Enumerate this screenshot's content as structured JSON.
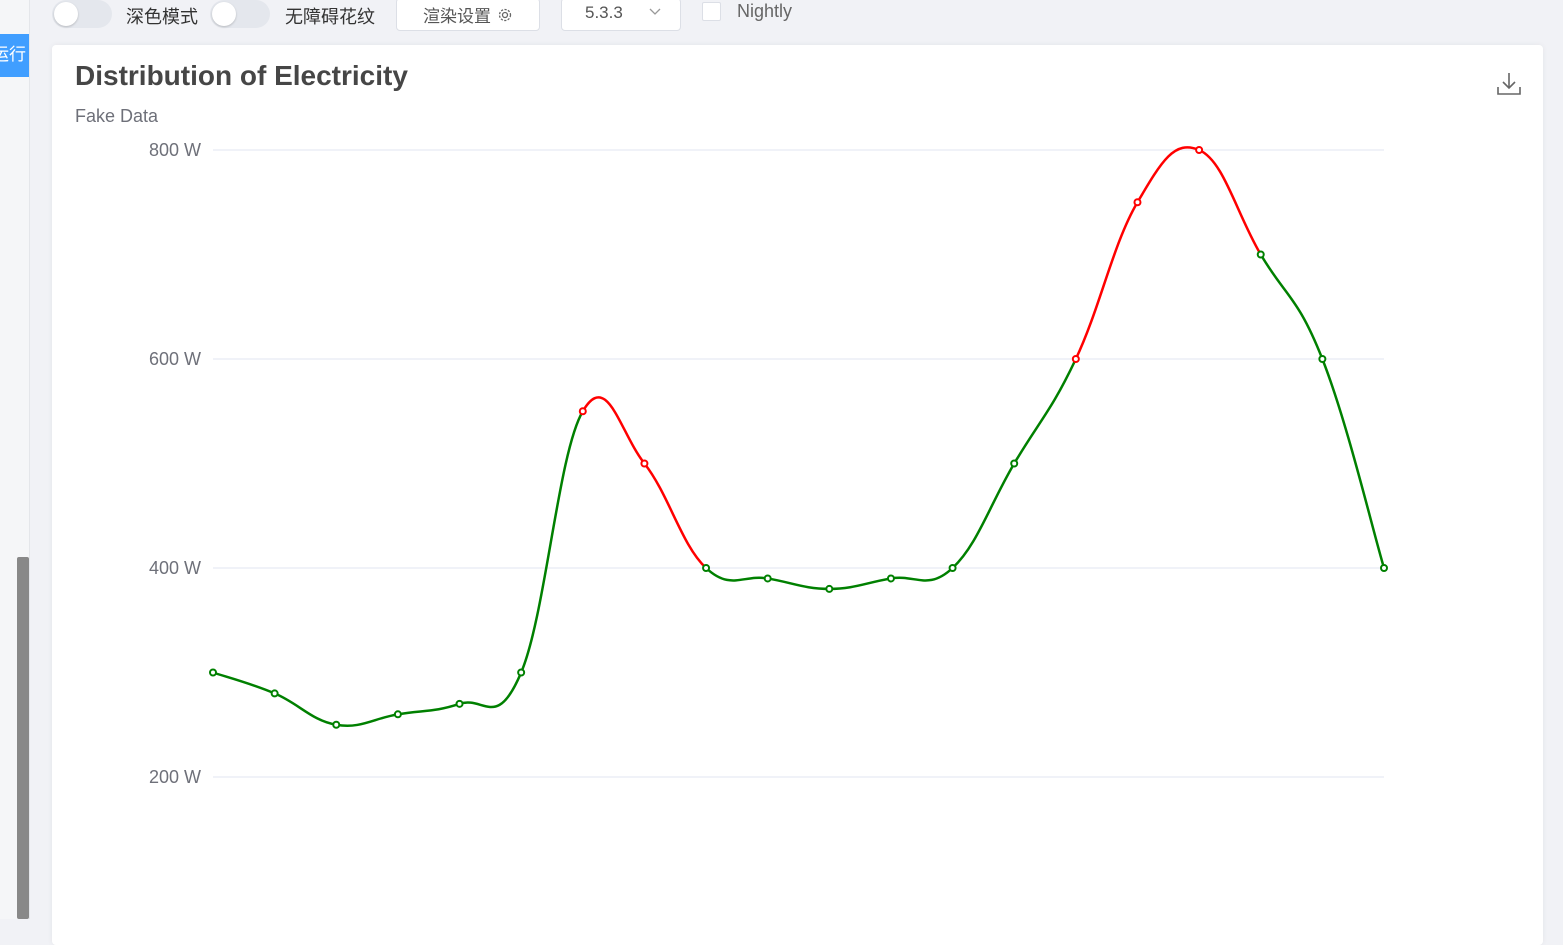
{
  "sidebar": {
    "run_label": "运行"
  },
  "toolbar": {
    "dark_mode_label": "深色模式",
    "accessibility_label": "无障碍花纹",
    "render_settings_label": "渲染设置",
    "render_settings_icon": "gear-icon",
    "version_value": "5.3.3",
    "nightly_label": "Nightly"
  },
  "card": {
    "download_icon": "download-icon"
  },
  "chart_data": {
    "type": "line",
    "title": "Distribution of Electricity",
    "subtitle": "Fake Data",
    "smooth": true,
    "y_ticks": [
      "200 W",
      "400 W",
      "600 W",
      "800 W"
    ],
    "ylim": [
      200,
      800
    ],
    "grid": true,
    "x": [
      0,
      1,
      2,
      3,
      4,
      5,
      6,
      7,
      8,
      9,
      10,
      11,
      12,
      13,
      14,
      15,
      16,
      17,
      18,
      19
    ],
    "values": [
      300,
      280,
      250,
      260,
      270,
      300,
      550,
      500,
      400,
      390,
      380,
      390,
      400,
      500,
      600,
      750,
      800,
      700,
      600,
      400
    ],
    "piece_colors": {
      "normal": "#008000",
      "highlight": "#ff0000"
    },
    "highlight_ranges": [
      [
        6,
        8
      ],
      [
        14,
        17
      ]
    ]
  }
}
